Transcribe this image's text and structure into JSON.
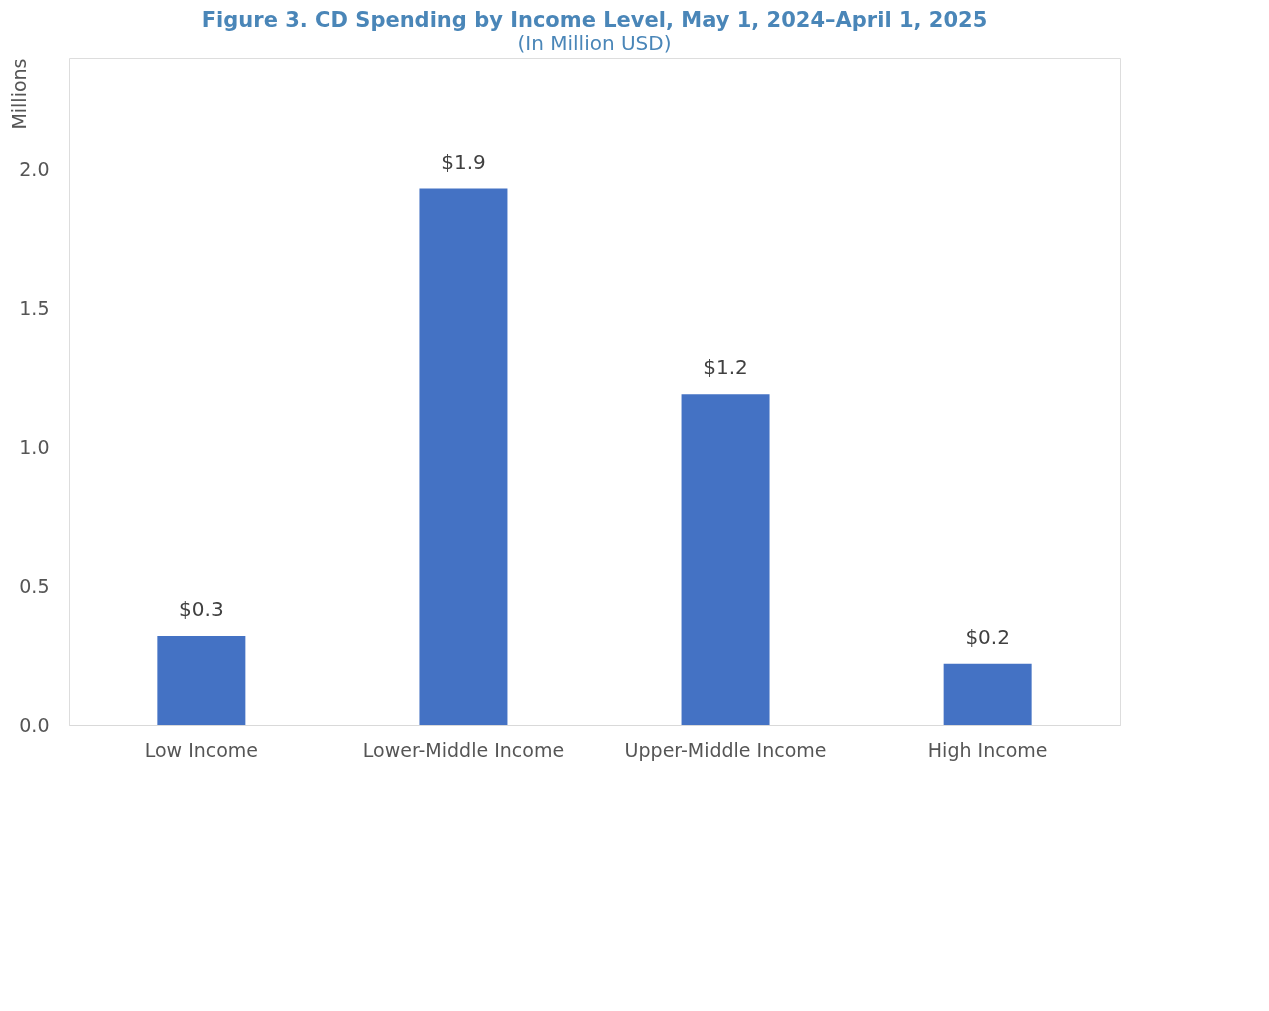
{
  "chart_data": {
    "type": "bar",
    "title": "Figure 3. CD Spending by Income Level, May 1, 2024–April 1, 2025",
    "subtitle": "(In Million USD)",
    "ylabel": "Millions",
    "categories": [
      "Low Income",
      "Lower-Middle Income",
      "Upper-Middle Income",
      "High Income"
    ],
    "values": [
      0.32,
      1.93,
      1.19,
      0.22
    ],
    "value_labels": [
      "$0.3",
      "$1.9",
      "$1.2",
      "$0.2"
    ],
    "color": "#4472c4",
    "ylim": [
      0,
      2.4
    ],
    "yticks": [
      {
        "value": 0,
        "label": "0.0"
      },
      {
        "value": 0.5,
        "label": "0.5"
      },
      {
        "value": 1,
        "label": "1.0"
      },
      {
        "value": 1.5,
        "label": "1.5"
      },
      {
        "value": 2,
        "label": "2.0"
      }
    ],
    "grid": false
  }
}
